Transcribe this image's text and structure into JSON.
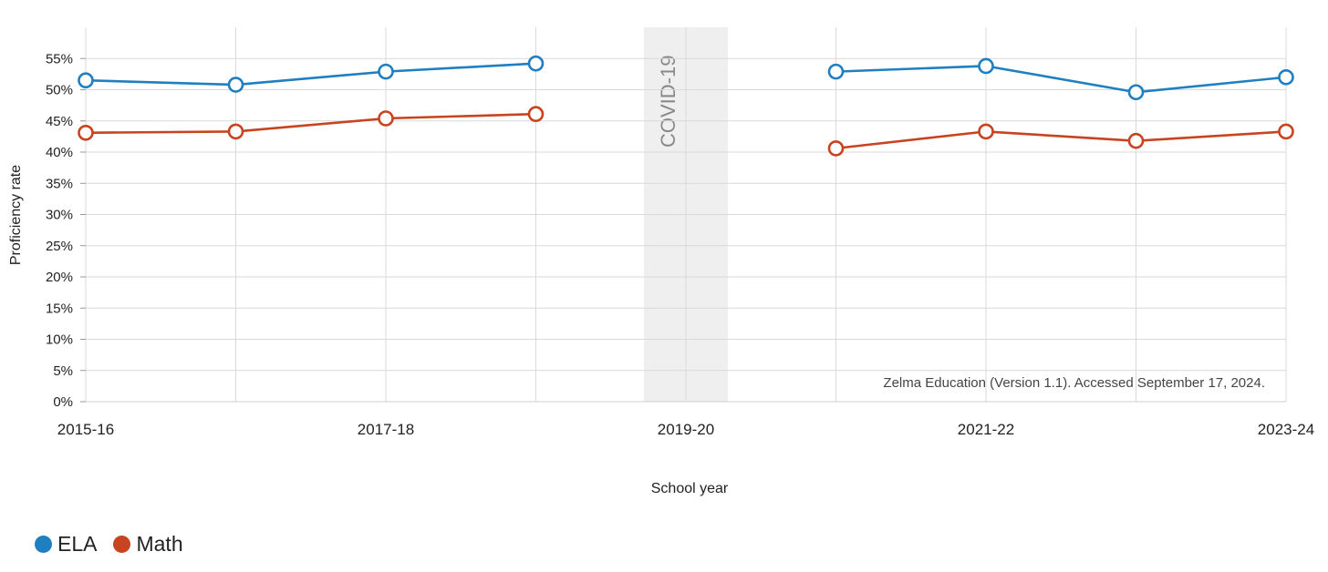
{
  "chart_data": {
    "type": "line",
    "xlabel": "School year",
    "ylabel": "Proficiency rate",
    "ylim": [
      0,
      60
    ],
    "y_ticks": [
      "0%",
      "5%",
      "10%",
      "15%",
      "20%",
      "25%",
      "30%",
      "35%",
      "40%",
      "45%",
      "50%",
      "55%"
    ],
    "x": [
      "2015-16",
      "2016-17",
      "2017-18",
      "2018-19",
      "2019-20",
      "2020-21",
      "2021-22",
      "2022-23",
      "2023-24"
    ],
    "x_tick_labels": [
      "2015-16",
      "",
      "2017-18",
      "",
      "2019-20",
      "",
      "2021-22",
      "",
      "2023-24"
    ],
    "series": [
      {
        "name": "ELA",
        "color": "#1f7fc0",
        "values": [
          51.5,
          50.8,
          52.9,
          54.2,
          null,
          52.9,
          53.8,
          49.6,
          52.0
        ]
      },
      {
        "name": "Math",
        "color": "#c8431f",
        "values": [
          43.1,
          43.3,
          45.4,
          46.1,
          null,
          40.6,
          43.3,
          41.8,
          43.3
        ]
      }
    ],
    "shaded_band": {
      "x": "2019-20",
      "label": "COVID-19"
    },
    "annotation": "Zelma Education (Version 1.1). Accessed September 17, 2024.",
    "grid": true,
    "legend_position": "bottom-left"
  }
}
